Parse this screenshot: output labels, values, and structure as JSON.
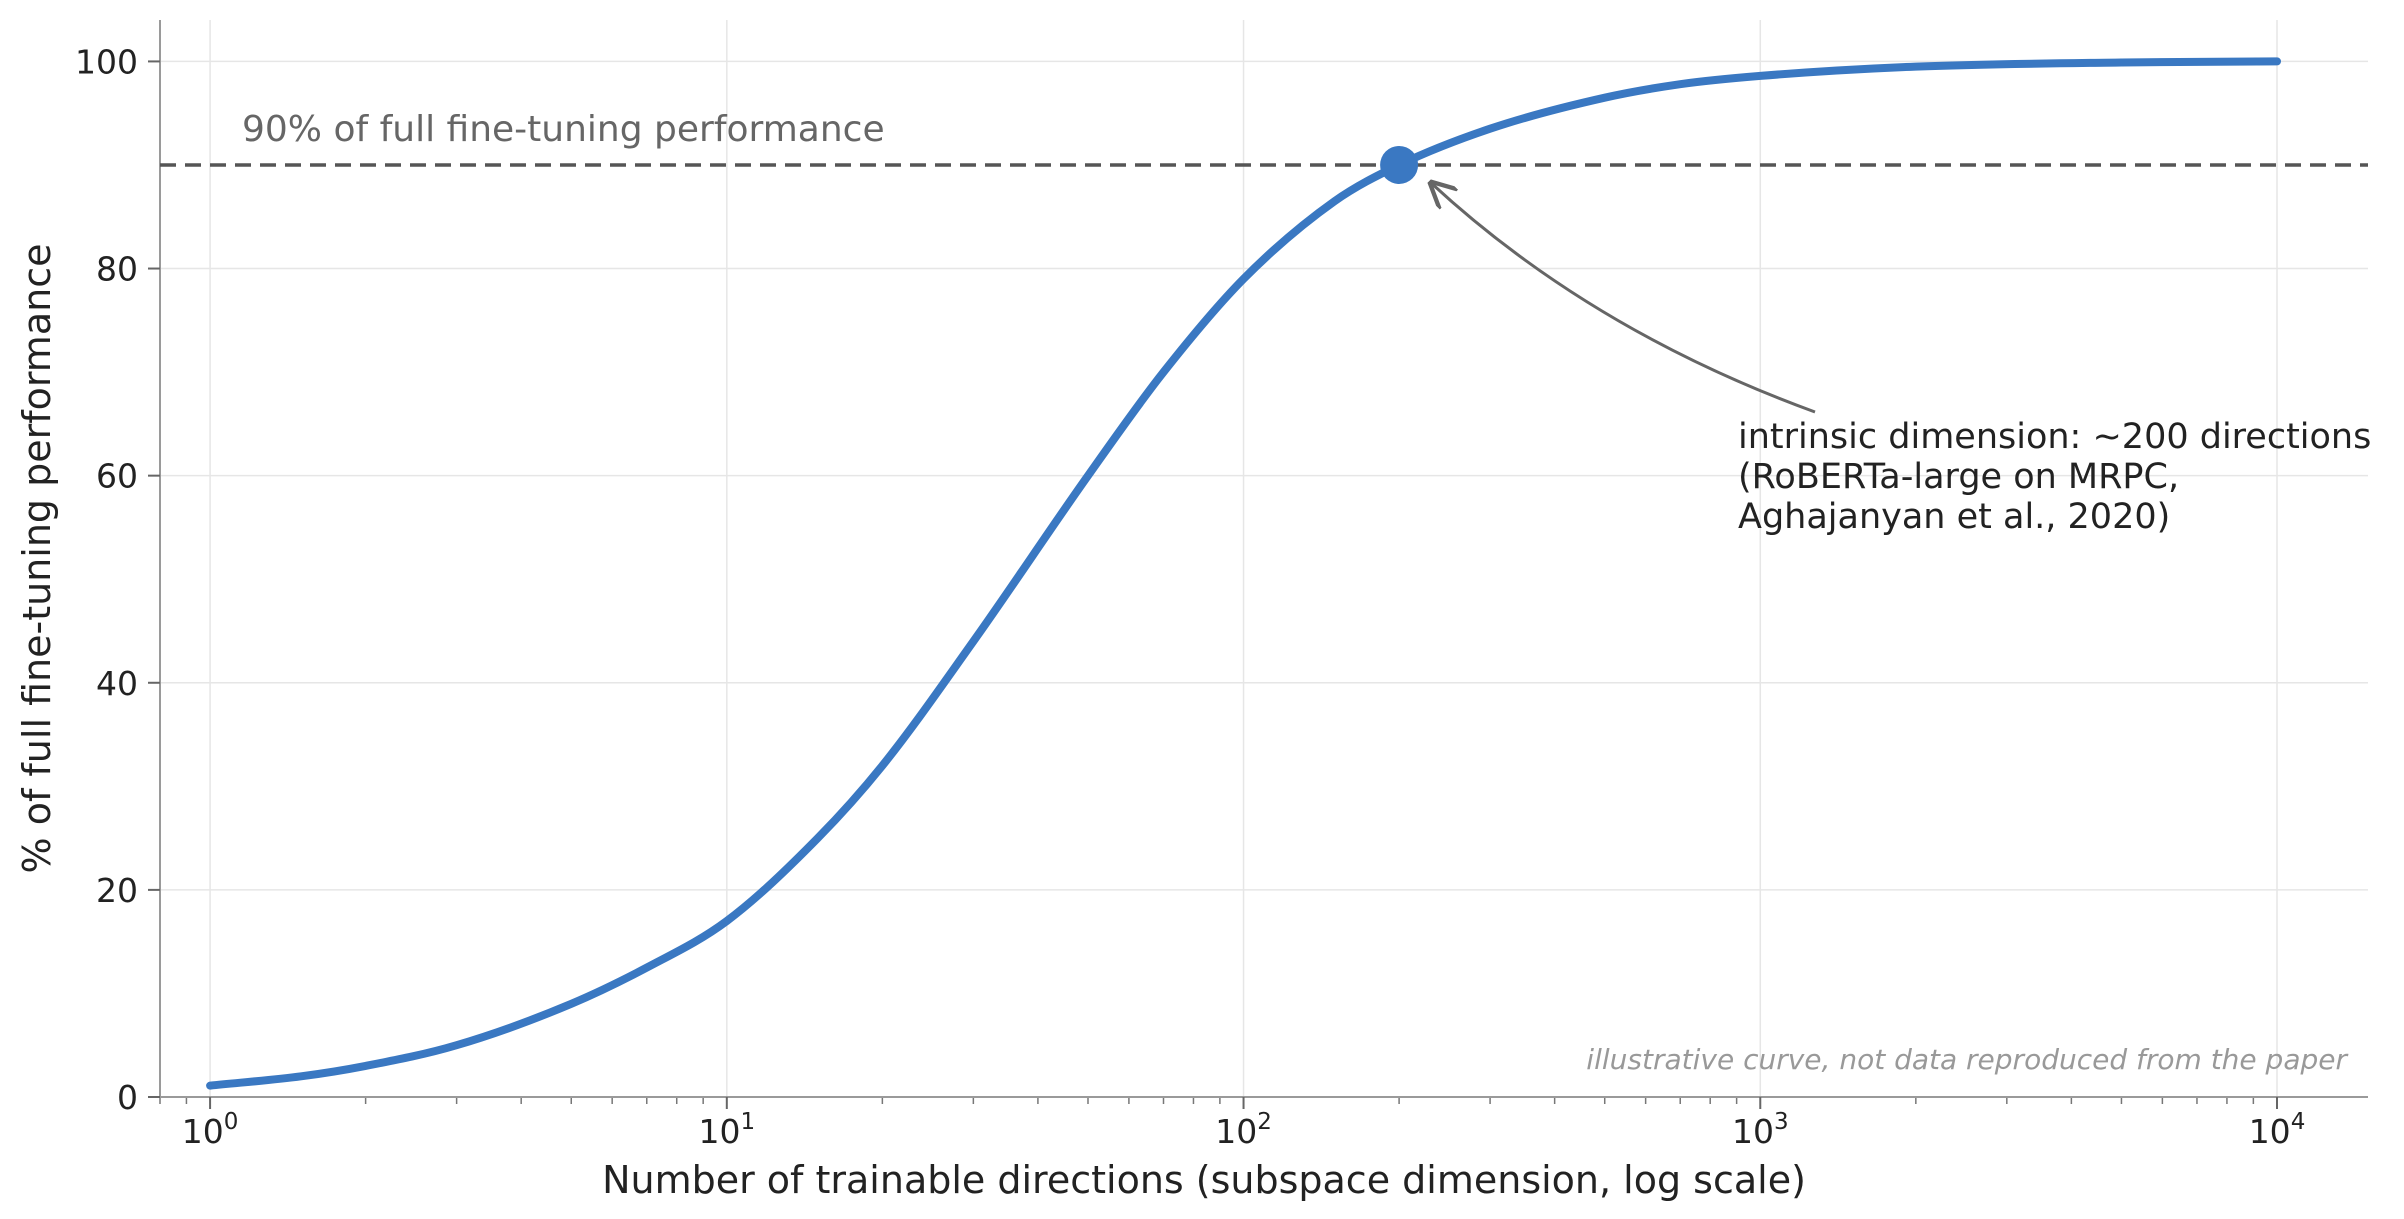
{
  "chart_data": {
    "type": "line",
    "title": "",
    "xlabel": "Number of trainable directions (subspace dimension, log scale)",
    "ylabel": "% of full fine-tuning performance",
    "x_scale": "log",
    "xlim": [
      0.8,
      15000
    ],
    "ylim": [
      0,
      104
    ],
    "x_ticks": [
      {
        "value": 1,
        "base": "10",
        "exp": "0"
      },
      {
        "value": 10,
        "base": "10",
        "exp": "1"
      },
      {
        "value": 100,
        "base": "10",
        "exp": "2"
      },
      {
        "value": 1000,
        "base": "10",
        "exp": "3"
      },
      {
        "value": 10000,
        "base": "10",
        "exp": "4"
      }
    ],
    "y_ticks": [
      0,
      20,
      40,
      60,
      80,
      100
    ],
    "grid": true,
    "line_color": "#3a78c2",
    "series": [
      {
        "name": "",
        "x": [
          1,
          1.5,
          2,
          3,
          5,
          7,
          10,
          15,
          20,
          30,
          50,
          70,
          100,
          150,
          200,
          300,
          500,
          700,
          1000,
          2000,
          5000,
          10000
        ],
        "y": [
          1.1,
          2,
          3,
          5,
          9,
          12.5,
          17,
          25,
          32,
          44,
          60,
          70,
          79,
          86.5,
          90,
          93.5,
          96.5,
          97.8,
          98.6,
          99.5,
          99.9,
          100
        ]
      }
    ],
    "threshold": {
      "y": 90,
      "label": "90% of full fine-tuning performance",
      "color": "#555555"
    },
    "marker": {
      "x": 200,
      "y": 90
    },
    "annotation": {
      "lines": [
        "intrinsic dimension: ~200 directions",
        "(RoBERTa-large on MRPC,",
        "Aghajanyan et al., 2020)"
      ],
      "arrow_color": "#666666"
    },
    "footnote": "illustrative curve, not data reproduced from the paper"
  }
}
